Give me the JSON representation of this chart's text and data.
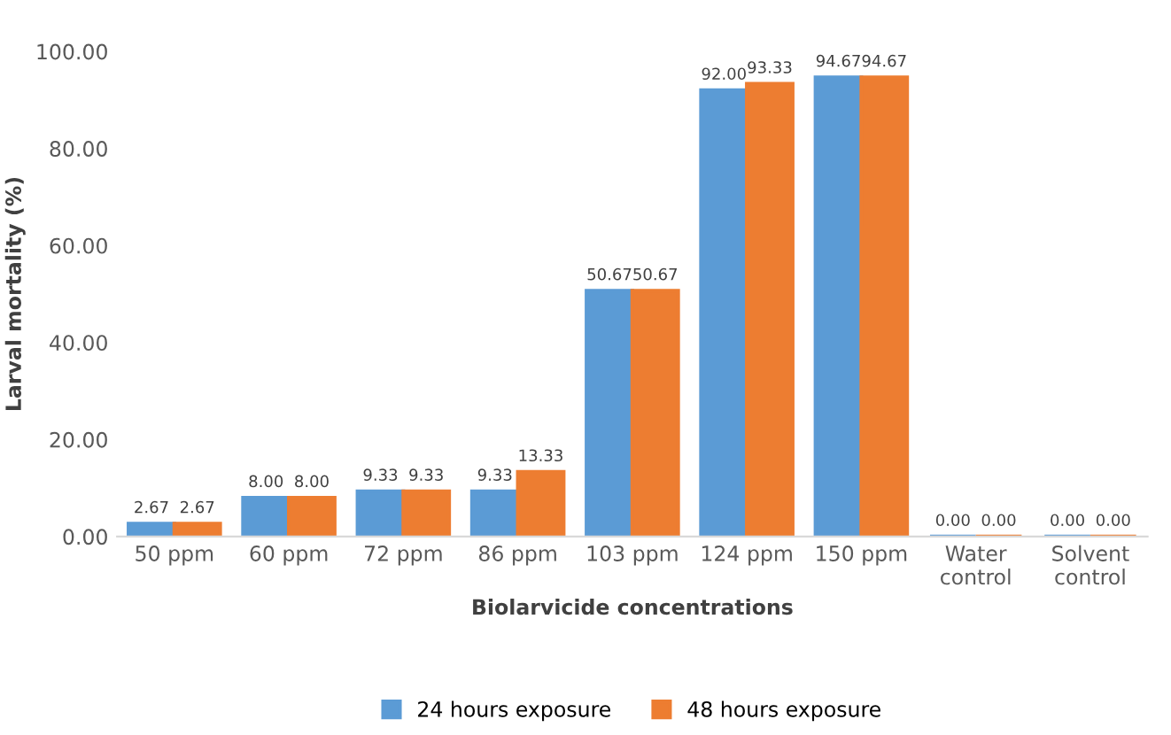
{
  "chart_data": {
    "type": "bar",
    "xlabel": "Biolarvicide concentrations",
    "ylabel": "Larval mortality (%)",
    "categories": [
      "50 ppm",
      "60 ppm",
      "72 ppm",
      "86 ppm",
      "103 ppm",
      "124 ppm",
      "150 ppm",
      "Water\ncontrol",
      "Solvent\ncontrol"
    ],
    "series": [
      {
        "name": "24 hours exposure",
        "color": "#5b9bd5",
        "values": [
          2.67,
          8.0,
          9.33,
          9.33,
          50.67,
          92.0,
          94.67,
          0,
          0
        ],
        "value_labels": [
          "2.67",
          "8.00",
          "9.33",
          "9.33",
          "50.67",
          "92.00",
          "94.67",
          "0.00",
          "0.00"
        ]
      },
      {
        "name": "48 hours exposure",
        "color": "#ed7d31",
        "values": [
          2.67,
          8.0,
          9.33,
          13.33,
          50.67,
          93.33,
          94.67,
          0,
          0
        ],
        "value_labels": [
          "2.67",
          "8.00",
          "9.33",
          "13.33",
          "50.67",
          "93.33",
          "94.67",
          "0.00",
          "0.00"
        ]
      }
    ],
    "ylim": [
      0,
      100
    ],
    "yticks": [
      {
        "value": 0,
        "label": "0.00"
      },
      {
        "value": 20,
        "label": "20.00"
      },
      {
        "value": 40,
        "label": "40.00"
      },
      {
        "value": 60,
        "label": "60.00"
      },
      {
        "value": 80,
        "label": "80.00"
      },
      {
        "value": 100,
        "label": "100.00"
      }
    ],
    "legend": "bottom",
    "grid": false
  }
}
